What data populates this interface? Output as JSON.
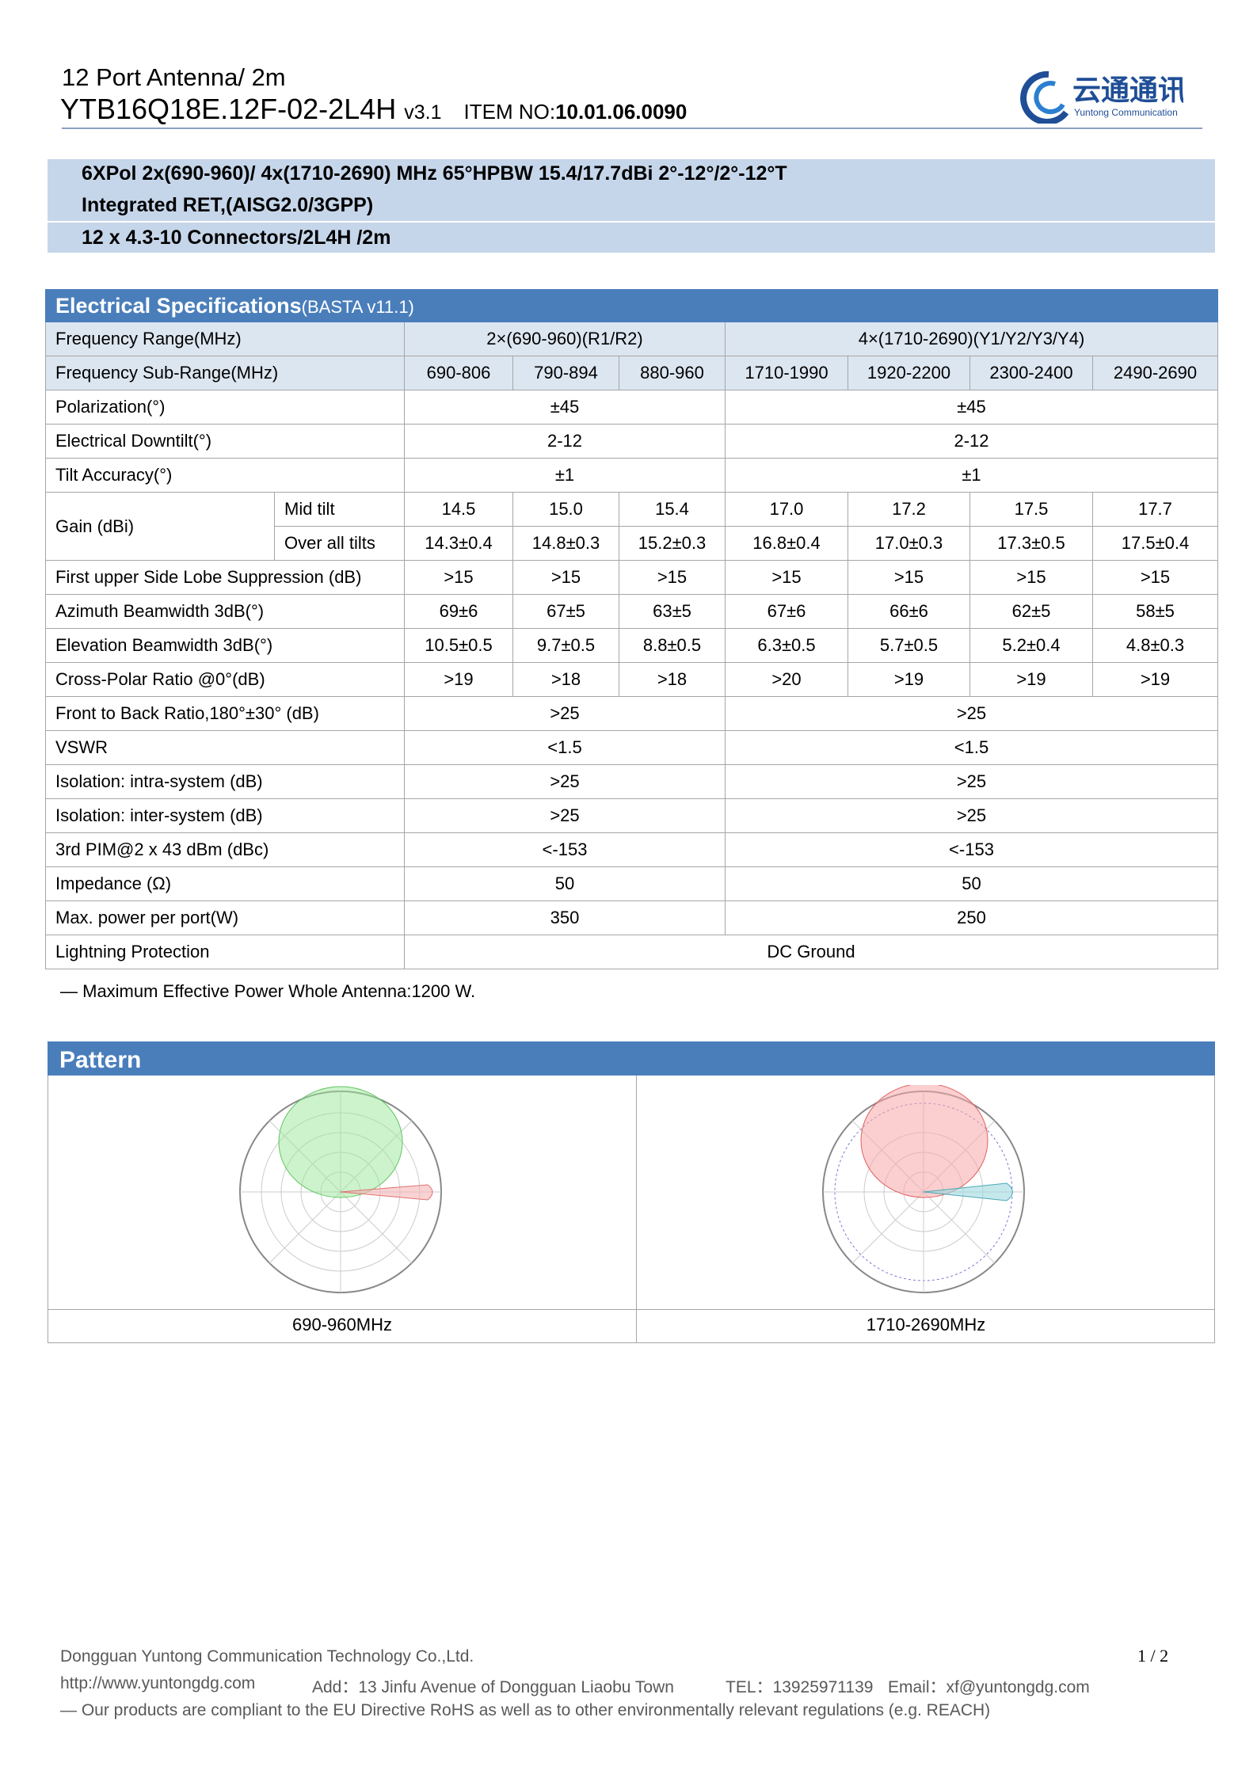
{
  "header": {
    "line1": "12 Port Antenna/ 2m",
    "model": "YTB16Q18E.12F-02-2L4H",
    "version": "v3.1",
    "item_label": "ITEM NO:",
    "item_no": "10.01.06.0090",
    "logo_cn": "云通通讯",
    "logo_en": "Yuntong Communication"
  },
  "summary": [
    "6XPol 2x(690-960)/ 4x(1710-2690) MHz 65°HPBW 15.4/17.7dBi 2°-12°/2°-12°T",
    "Integrated RET,(AISG2.0/3GPP)",
    "12 x 4.3-10 Connectors/2L4H /2m"
  ],
  "table": {
    "title": "Electrical Specifications",
    "subtitle": "(BASTA v11.1)",
    "rows": [
      {
        "label": "Frequency Range(MHz)",
        "cells": [
          "2×(690-960)(R1/R2)",
          "4×(1710-2690)(Y1/Y2/Y3/Y4)"
        ]
      },
      {
        "label": "Frequency Sub-Range(MHz)",
        "cells": [
          "690-806",
          "790-894",
          "880-960",
          "1710-1990",
          "1920-2200",
          "2300-2400",
          "2490-2690"
        ]
      },
      {
        "label": "Polarization(°)",
        "cells": [
          "±45",
          "±45"
        ]
      },
      {
        "label": "Electrical Downtilt(°)",
        "cells": [
          "2-12",
          "2-12"
        ]
      },
      {
        "label": "Tilt Accuracy(°)",
        "cells": [
          "±1",
          "±1"
        ]
      },
      {
        "label": "Gain (dBi)",
        "subrows": [
          {
            "label": "Mid tilt",
            "cells": [
              "14.5",
              "15.0",
              "15.4",
              "17.0",
              "17.2",
              "17.5",
              "17.7"
            ]
          },
          {
            "label": "Over all tilts",
            "cells": [
              "14.3±0.4",
              "14.8±0.3",
              "15.2±0.3",
              "16.8±0.4",
              "17.0±0.3",
              "17.3±0.5",
              "17.5±0.4"
            ]
          }
        ]
      },
      {
        "label": "First upper Side Lobe Suppression (dB)",
        "cells": [
          ">15",
          ">15",
          ">15",
          ">15",
          ">15",
          ">15",
          ">15"
        ]
      },
      {
        "label": "Azimuth Beamwidth 3dB(°)",
        "cells": [
          "69±6",
          "67±5",
          "63±5",
          "67±6",
          "66±6",
          "62±5",
          "58±5"
        ]
      },
      {
        "label": "Elevation Beamwidth 3dB(°)",
        "cells": [
          "10.5±0.5",
          "9.7±0.5",
          "8.8±0.5",
          "6.3±0.5",
          "5.7±0.5",
          "5.2±0.4",
          "4.8±0.3"
        ]
      },
      {
        "label": "Cross-Polar Ratio @0°(dB)",
        "cells": [
          ">19",
          ">18",
          ">18",
          ">20",
          ">19",
          ">19",
          ">19"
        ]
      },
      {
        "label": "Front to Back Ratio,180°±30° (dB)",
        "cells": [
          ">25",
          ">25"
        ]
      },
      {
        "label": "VSWR",
        "cells": [
          "<1.5",
          "<1.5"
        ]
      },
      {
        "label": "Isolation: intra-system (dB)",
        "cells": [
          ">25",
          ">25"
        ]
      },
      {
        "label": "Isolation: inter-system (dB)",
        "cells": [
          ">25",
          ">25"
        ]
      },
      {
        "label": "3rd PIM@2 x 43 dBm (dBc)",
        "cells": [
          "<-153",
          "<-153"
        ]
      },
      {
        "label": "Impedance (Ω)",
        "cells": [
          "50",
          "50"
        ]
      },
      {
        "label": "Max. power per port(W)",
        "cells": [
          "350",
          "250"
        ]
      },
      {
        "label": "Lightning Protection",
        "cells": [
          "DC Ground"
        ]
      }
    ]
  },
  "note": "— Maximum Effective Power Whole Antenna:1200 W.",
  "pattern": {
    "title": "Pattern",
    "captions": [
      "690-960MHz",
      "1710-2690MHz"
    ]
  },
  "footer": {
    "company": "Dongguan Yuntong Communication Technology Co.,Ltd.",
    "page": "1 / 2",
    "web": "http://www.yuntongdg.com",
    "address": "Add：13 Jinfu Avenue   of Dongguan Liaobu Town",
    "tel": "TEL：13925971139",
    "email_label": "Email",
    "email": "：xf@yuntongdg.com",
    "compliance": "— Our products are compliant to the EU Directive RoHS as well as to other environmentally relevant regulations (e.g. REACH)"
  }
}
